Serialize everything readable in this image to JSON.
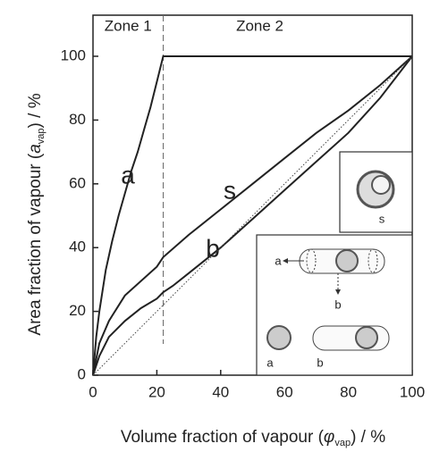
{
  "chart_data": {
    "type": "line",
    "x_label": {
      "before": "Volume fraction of vapour (",
      "var": "φ",
      "sub": "vap",
      "after": ") / %"
    },
    "y_label": {
      "before": "Area fraction of vapour (",
      "var": "a",
      "sub": "vap",
      "after": ") / %"
    },
    "xlim": [
      0,
      100
    ],
    "ylim": [
      0,
      100
    ],
    "xticks": [
      0,
      20,
      40,
      60,
      80,
      100
    ],
    "yticks": [
      0,
      20,
      40,
      60,
      80,
      100
    ],
    "zone_boundary": 22,
    "zones": [
      "Zone 1",
      "Zone 2"
    ],
    "series": [
      {
        "name": "a",
        "color": "#222",
        "style": "solid",
        "x": [
          0,
          1,
          2,
          4,
          6,
          8,
          10,
          12,
          14,
          16,
          18,
          20,
          22,
          100
        ],
        "values": [
          0,
          12,
          20,
          33,
          42,
          50,
          57,
          64,
          70,
          77,
          84,
          92,
          100,
          100
        ]
      },
      {
        "name": "s",
        "color": "#222",
        "style": "solid",
        "x": [
          0,
          2,
          5,
          10,
          20,
          22,
          30,
          40,
          50,
          60,
          70,
          80,
          90,
          100
        ],
        "values": [
          0,
          10,
          17,
          25,
          34,
          37,
          44,
          52,
          60,
          68,
          76,
          83,
          91,
          100
        ]
      },
      {
        "name": "b",
        "color": "#222",
        "style": "solid",
        "x": [
          0,
          2,
          5,
          10,
          15,
          20,
          22,
          25,
          30,
          40,
          50,
          60,
          70,
          80,
          90,
          100
        ],
        "values": [
          0,
          6,
          12,
          17,
          21,
          24,
          26,
          28,
          32,
          40,
          49,
          58,
          67,
          76,
          87,
          100
        ]
      },
      {
        "name": null,
        "color": "#444",
        "style": "dotted",
        "x": [
          0,
          100
        ],
        "values": [
          0,
          100
        ]
      }
    ],
    "inset_labels": [
      "s",
      "a",
      "b",
      "a",
      "b"
    ]
  }
}
